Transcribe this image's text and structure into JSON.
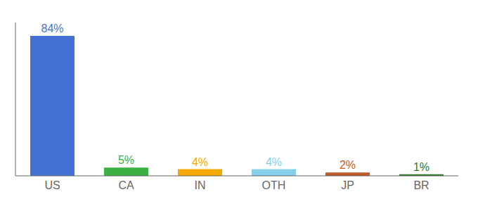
{
  "chart_data": {
    "type": "bar",
    "categories": [
      "US",
      "CA",
      "IN",
      "OTH",
      "JP",
      "BR"
    ],
    "values": [
      84,
      5,
      4,
      4,
      2,
      1
    ],
    "value_labels": [
      "84%",
      "5%",
      "4%",
      "4%",
      "2%",
      "1%"
    ],
    "data_labels": true,
    "colors": [
      "#4472d4",
      "#3cb043",
      "#f5a800",
      "#87ceeb",
      "#c05a28",
      "#2a7a2a"
    ],
    "ylim": [
      0,
      92
    ],
    "grid": false,
    "tick_labels": "x"
  }
}
